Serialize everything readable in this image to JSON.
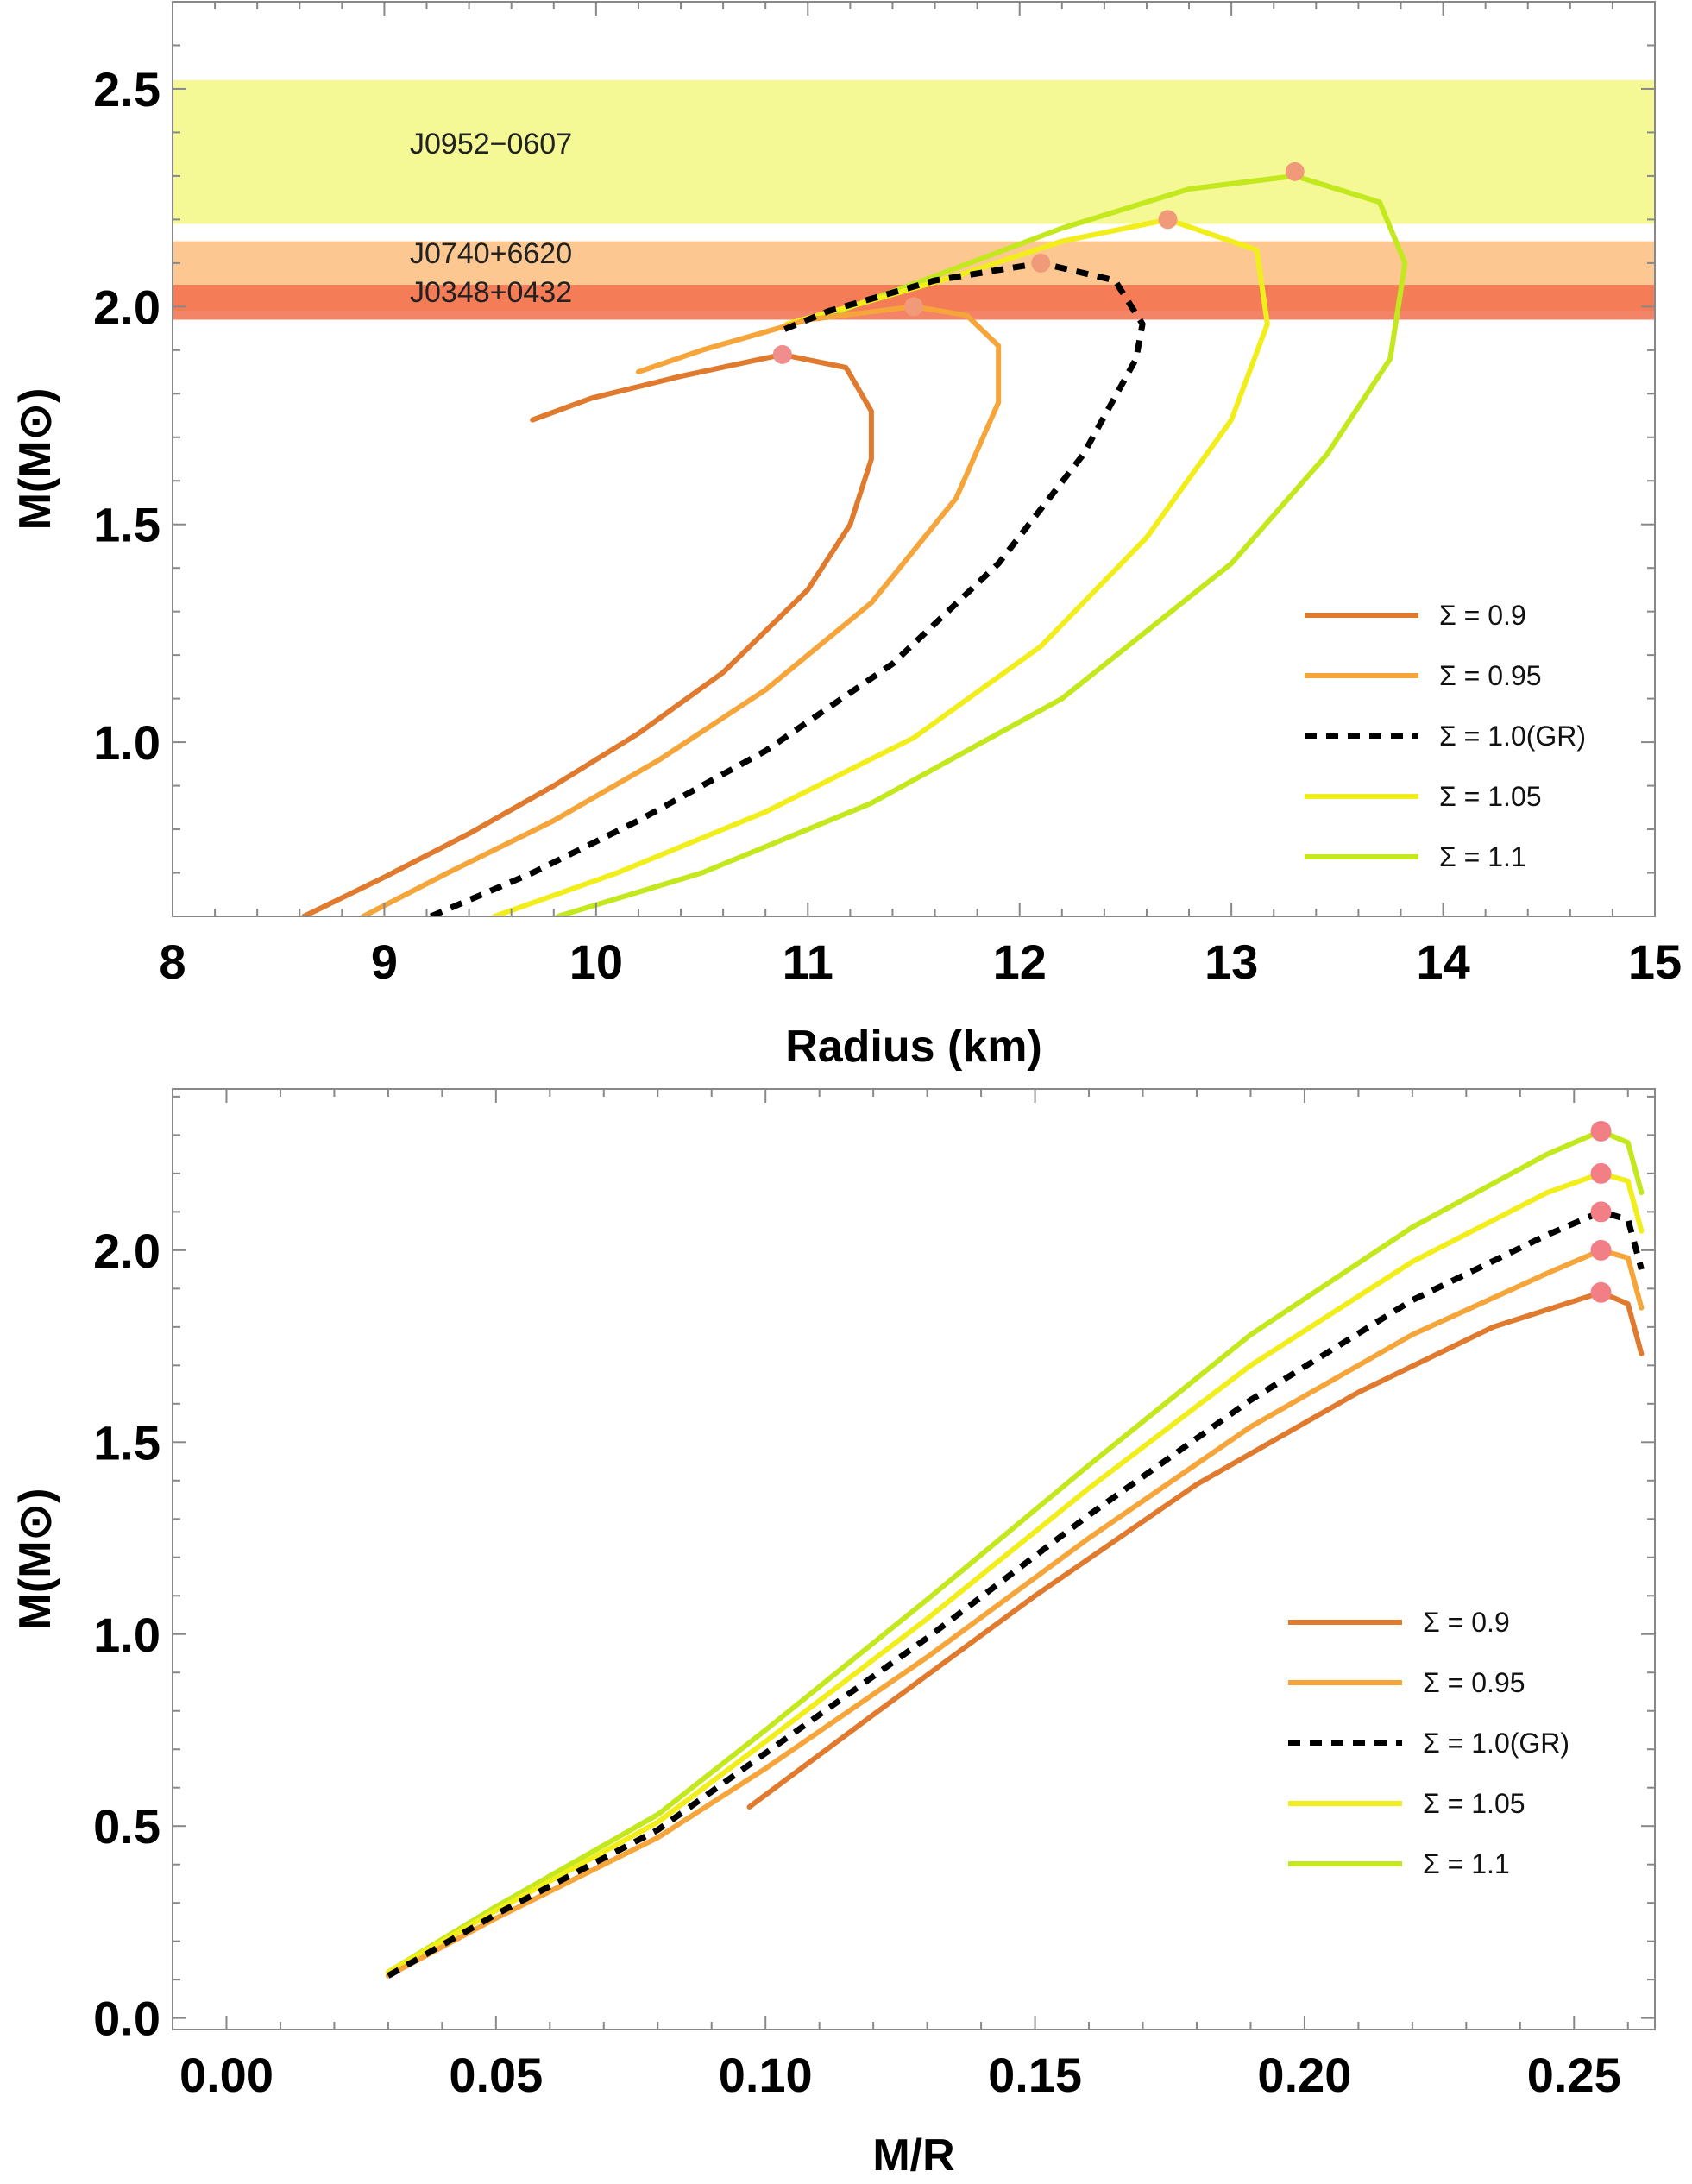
{
  "chart_data": [
    {
      "type": "line",
      "xlabel": "Radius (km)",
      "ylabel": "M(M⊙)",
      "xlim": [
        8,
        15
      ],
      "ylim": [
        0.6,
        2.7
      ],
      "xticks": [
        8,
        9,
        10,
        11,
        12,
        13,
        14,
        15
      ],
      "yticks": [
        1.0,
        1.5,
        2.0,
        2.5
      ],
      "grid": false,
      "legend_position": "bottom-right",
      "bands": [
        {
          "label": "J0952−0607",
          "ymin": 2.19,
          "ymax": 2.52,
          "color": "#f3f78a"
        },
        {
          "label": "J0740+6620",
          "ymin": 1.99,
          "ymax": 2.15,
          "color": "#fcc184"
        },
        {
          "label": "J0348+0432",
          "ymin": 1.97,
          "ymax": 2.05,
          "color": "#f26f4d"
        }
      ],
      "series": [
        {
          "name": "Σ = 0.9",
          "color": "#e07a2e",
          "dash": false,
          "points": [
            [
              8.62,
              0.6
            ],
            [
              9.0,
              0.69
            ],
            [
              9.4,
              0.79
            ],
            [
              9.8,
              0.9
            ],
            [
              10.2,
              1.02
            ],
            [
              10.6,
              1.16
            ],
            [
              11.0,
              1.35
            ],
            [
              11.2,
              1.5
            ],
            [
              11.3,
              1.65
            ],
            [
              11.3,
              1.76
            ],
            [
              11.18,
              1.86
            ],
            [
              10.88,
              1.89
            ],
            [
              10.4,
              1.84
            ],
            [
              9.98,
              1.79
            ],
            [
              9.7,
              1.74
            ]
          ],
          "max": [
            10.88,
            1.89
          ]
        },
        {
          "name": "Σ = 0.95",
          "color": "#f5a53a",
          "dash": false,
          "points": [
            [
              8.9,
              0.6
            ],
            [
              9.3,
              0.7
            ],
            [
              9.8,
              0.82
            ],
            [
              10.3,
              0.96
            ],
            [
              10.8,
              1.12
            ],
            [
              11.3,
              1.32
            ],
            [
              11.7,
              1.56
            ],
            [
              11.9,
              1.78
            ],
            [
              11.9,
              1.91
            ],
            [
              11.75,
              1.98
            ],
            [
              11.5,
              2.0
            ],
            [
              11.0,
              1.97
            ],
            [
              10.5,
              1.9
            ],
            [
              10.2,
              1.85
            ]
          ],
          "max": [
            11.5,
            2.0
          ]
        },
        {
          "name": "Σ = 1.0(GR)",
          "color": "#000000",
          "dash": true,
          "points": [
            [
              9.22,
              0.6
            ],
            [
              9.7,
              0.7
            ],
            [
              10.2,
              0.82
            ],
            [
              10.8,
              0.98
            ],
            [
              11.4,
              1.18
            ],
            [
              11.9,
              1.41
            ],
            [
              12.3,
              1.66
            ],
            [
              12.55,
              1.88
            ],
            [
              12.58,
              1.96
            ],
            [
              12.45,
              2.06
            ],
            [
              12.1,
              2.1
            ],
            [
              11.6,
              2.06
            ],
            [
              11.1,
              1.99
            ],
            [
              10.85,
              1.94
            ]
          ],
          "max": [
            12.1,
            2.1
          ]
        },
        {
          "name": "Σ = 1.05",
          "color": "#f2ee1c",
          "dash": false,
          "points": [
            [
              9.52,
              0.6
            ],
            [
              10.1,
              0.7
            ],
            [
              10.8,
              0.84
            ],
            [
              11.5,
              1.01
            ],
            [
              12.1,
              1.22
            ],
            [
              12.6,
              1.47
            ],
            [
              13.0,
              1.74
            ],
            [
              13.17,
              1.96
            ],
            [
              13.12,
              2.13
            ],
            [
              12.7,
              2.2
            ],
            [
              12.2,
              2.15
            ],
            [
              11.7,
              2.07
            ],
            [
              11.2,
              2.0
            ],
            [
              10.9,
              1.96
            ]
          ],
          "max": [
            12.7,
            2.2
          ]
        },
        {
          "name": "Σ = 1.1",
          "color": "#c4e81e",
          "dash": false,
          "points": [
            [
              9.82,
              0.6
            ],
            [
              10.5,
              0.7
            ],
            [
              11.3,
              0.86
            ],
            [
              12.2,
              1.1
            ],
            [
              13.0,
              1.41
            ],
            [
              13.45,
              1.66
            ],
            [
              13.75,
              1.88
            ],
            [
              13.82,
              2.1
            ],
            [
              13.7,
              2.24
            ],
            [
              13.3,
              2.3
            ],
            [
              12.8,
              2.27
            ],
            [
              12.2,
              2.18
            ],
            [
              11.6,
              2.07
            ],
            [
              11.15,
              1.99
            ]
          ],
          "max": [
            13.3,
            2.31
          ]
        }
      ]
    },
    {
      "type": "line",
      "xlabel": "M/R",
      "ylabel": "M(M⊙)",
      "xlim": [
        -0.01,
        0.265
      ],
      "ylim": [
        -0.03,
        2.42
      ],
      "xticks": [
        0.0,
        0.05,
        0.1,
        0.15,
        0.2,
        0.25
      ],
      "yticks": [
        0.0,
        0.5,
        1.0,
        1.5,
        2.0
      ],
      "grid": false,
      "legend_position": "bottom-right",
      "series": [
        {
          "name": "Σ = 0.9",
          "color": "#e07a2e",
          "dash": false,
          "points": [
            [
              0.097,
              0.55
            ],
            [
              0.12,
              0.79
            ],
            [
              0.15,
              1.1
            ],
            [
              0.18,
              1.39
            ],
            [
              0.21,
              1.63
            ],
            [
              0.235,
              1.8
            ],
            [
              0.255,
              1.89
            ],
            [
              0.26,
              1.86
            ],
            [
              0.2625,
              1.73
            ]
          ],
          "max": [
            0.255,
            1.89
          ]
        },
        {
          "name": "Σ = 0.95",
          "color": "#f5a53a",
          "dash": false,
          "points": [
            [
              0.03,
              0.11
            ],
            [
              0.05,
              0.26
            ],
            [
              0.08,
              0.47
            ],
            [
              0.1,
              0.65
            ],
            [
              0.13,
              0.94
            ],
            [
              0.16,
              1.25
            ],
            [
              0.19,
              1.54
            ],
            [
              0.22,
              1.78
            ],
            [
              0.245,
              1.94
            ],
            [
              0.255,
              2.0
            ],
            [
              0.26,
              1.98
            ],
            [
              0.2625,
              1.85
            ]
          ],
          "max": [
            0.255,
            2.0
          ]
        },
        {
          "name": "Σ = 1.0(GR)",
          "color": "#000000",
          "dash": true,
          "points": [
            [
              0.03,
              0.11
            ],
            [
              0.05,
              0.27
            ],
            [
              0.08,
              0.49
            ],
            [
              0.1,
              0.69
            ],
            [
              0.13,
              0.99
            ],
            [
              0.16,
              1.31
            ],
            [
              0.19,
              1.61
            ],
            [
              0.22,
              1.87
            ],
            [
              0.245,
              2.04
            ],
            [
              0.255,
              2.1
            ],
            [
              0.26,
              2.08
            ],
            [
              0.2625,
              1.95
            ]
          ],
          "max": [
            0.255,
            2.1
          ]
        },
        {
          "name": "Σ = 1.05",
          "color": "#f2ee1c",
          "dash": false,
          "points": [
            [
              0.03,
              0.12
            ],
            [
              0.05,
              0.28
            ],
            [
              0.08,
              0.51
            ],
            [
              0.1,
              0.72
            ],
            [
              0.13,
              1.04
            ],
            [
              0.16,
              1.38
            ],
            [
              0.19,
              1.7
            ],
            [
              0.22,
              1.97
            ],
            [
              0.245,
              2.15
            ],
            [
              0.255,
              2.2
            ],
            [
              0.26,
              2.18
            ],
            [
              0.2625,
              2.05
            ]
          ],
          "max": [
            0.255,
            2.2
          ]
        },
        {
          "name": "Σ = 1.1",
          "color": "#c4e81e",
          "dash": false,
          "points": [
            [
              0.03,
              0.12
            ],
            [
              0.05,
              0.29
            ],
            [
              0.08,
              0.53
            ],
            [
              0.1,
              0.75
            ],
            [
              0.13,
              1.09
            ],
            [
              0.16,
              1.44
            ],
            [
              0.19,
              1.78
            ],
            [
              0.22,
              2.06
            ],
            [
              0.245,
              2.25
            ],
            [
              0.255,
              2.31
            ],
            [
              0.26,
              2.28
            ],
            [
              0.2625,
              2.15
            ]
          ],
          "max": [
            0.255,
            2.31
          ]
        }
      ]
    }
  ]
}
